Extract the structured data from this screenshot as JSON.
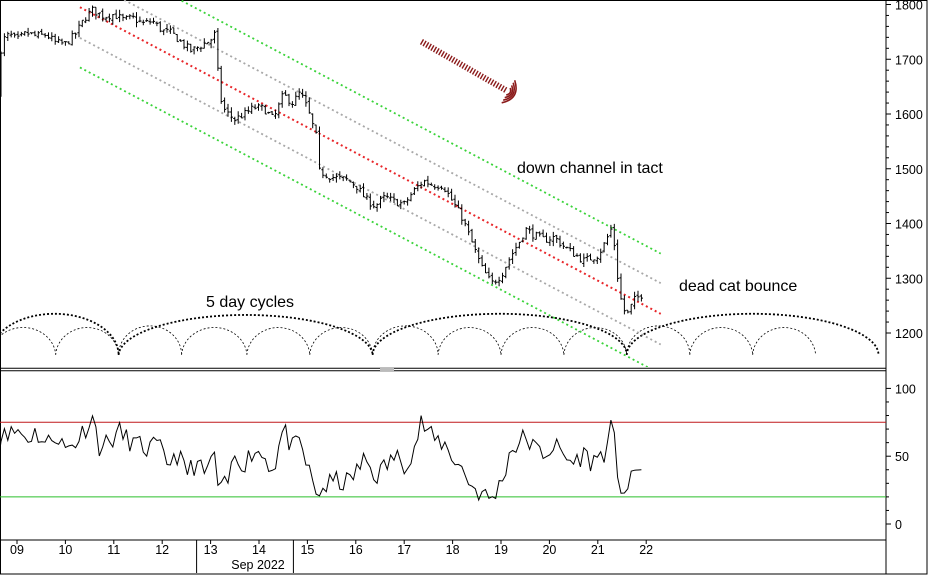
{
  "chart_data": [
    {
      "type": "ohlc",
      "panel": "price",
      "y_ticks": [
        1200,
        1300,
        1400,
        1500,
        1600,
        1700,
        1800
      ],
      "ylim": [
        1130,
        1815
      ],
      "x_ticks": [
        "09",
        "10",
        "11",
        "12",
        "13",
        "14",
        "15",
        "16",
        "17",
        "18",
        "19",
        "20",
        "21",
        "22"
      ],
      "x_sublabel": "Sep 2022",
      "close_path": [
        [
          8.6,
          1645
        ],
        [
          8.7,
          1735
        ],
        [
          8.85,
          1745
        ],
        [
          9.0,
          1735
        ],
        [
          9.2,
          1748
        ],
        [
          9.4,
          1742
        ],
        [
          9.6,
          1745
        ],
        [
          9.8,
          1730
        ],
        [
          10.0,
          1728
        ],
        [
          10.2,
          1745
        ],
        [
          10.4,
          1775
        ],
        [
          10.55,
          1790
        ],
        [
          10.8,
          1778
        ],
        [
          11.0,
          1782
        ],
        [
          11.2,
          1772
        ],
        [
          11.4,
          1775
        ],
        [
          11.6,
          1765
        ],
        [
          11.8,
          1770
        ],
        [
          12.0,
          1752
        ],
        [
          12.2,
          1748
        ],
        [
          12.4,
          1730
        ],
        [
          12.6,
          1715
        ],
        [
          12.8,
          1725
        ],
        [
          13.0,
          1735
        ],
        [
          13.1,
          1748
        ],
        [
          13.18,
          1635
        ],
        [
          13.3,
          1605
        ],
        [
          13.5,
          1590
        ],
        [
          13.7,
          1600
        ],
        [
          13.9,
          1612
        ],
        [
          14.1,
          1610
        ],
        [
          14.3,
          1590
        ],
        [
          14.5,
          1635
        ],
        [
          14.7,
          1620
        ],
        [
          14.85,
          1640
        ],
        [
          15.0,
          1610
        ],
        [
          15.18,
          1560
        ],
        [
          15.25,
          1495
        ],
        [
          15.5,
          1485
        ],
        [
          15.8,
          1480
        ],
        [
          16.0,
          1470
        ],
        [
          16.2,
          1445
        ],
        [
          16.4,
          1432
        ],
        [
          16.6,
          1448
        ],
        [
          16.8,
          1440
        ],
        [
          17.0,
          1435
        ],
        [
          17.2,
          1460
        ],
        [
          17.4,
          1478
        ],
        [
          17.6,
          1470
        ],
        [
          17.8,
          1470
        ],
        [
          18.0,
          1440
        ],
        [
          18.2,
          1410
        ],
        [
          18.4,
          1365
        ],
        [
          18.6,
          1320
        ],
        [
          18.8,
          1290
        ],
        [
          19.0,
          1305
        ],
        [
          19.2,
          1340
        ],
        [
          19.4,
          1370
        ],
        [
          19.5,
          1390
        ],
        [
          19.7,
          1378
        ],
        [
          19.9,
          1370
        ],
        [
          20.1,
          1375
        ],
        [
          20.3,
          1358
        ],
        [
          20.5,
          1345
        ],
        [
          20.7,
          1332
        ],
        [
          20.9,
          1338
        ],
        [
          21.0,
          1342
        ],
        [
          21.15,
          1365
        ],
        [
          21.3,
          1395
        ],
        [
          21.42,
          1295
        ],
        [
          21.5,
          1250
        ],
        [
          21.6,
          1232
        ],
        [
          21.75,
          1260
        ],
        [
          21.9,
          1270
        ]
      ],
      "channel": {
        "start": [
          10.3,
          1795
        ],
        "end": [
          22.3,
          1235
        ],
        "offsets": [
          -110,
          -56,
          0,
          56,
          110
        ],
        "midline_color": "#e8262a",
        "inner_color": "#a8a8a8",
        "outer_color": "#3ad33a"
      },
      "cycles": {
        "label": "5 day cycles",
        "troughs_major": [
          8.45,
          11.1,
          16.35,
          21.6,
          26.8
        ],
        "troughs_minor": [
          8.45,
          9.8,
          11.1,
          12.4,
          13.75,
          15.05,
          16.35,
          17.7,
          19.0,
          20.3,
          21.6,
          22.9,
          24.2,
          25.5
        ],
        "trough_level": 1160,
        "major_peak_level": 1235,
        "minor_peak_level": 1213
      },
      "annotations": [
        {
          "text": "down channel in tact"
        },
        {
          "text": "dead cat bounce"
        }
      ],
      "arrow_color": "#8b1a1a"
    },
    {
      "type": "line",
      "panel": "oscillator",
      "y_ticks": [
        0,
        50,
        100
      ],
      "ylim": [
        -12,
        110
      ],
      "upper_level": 75,
      "lower_level": 20,
      "upper_color": "#c0191b",
      "lower_color": "#2bbf2b",
      "points": [
        [
          8.6,
          50
        ],
        [
          8.75,
          75
        ],
        [
          8.85,
          65
        ],
        [
          9.0,
          70
        ],
        [
          9.2,
          63
        ],
        [
          9.4,
          68
        ],
        [
          9.6,
          58
        ],
        [
          9.8,
          67
        ],
        [
          10.0,
          55
        ],
        [
          10.2,
          60
        ],
        [
          10.4,
          70
        ],
        [
          10.55,
          80
        ],
        [
          10.7,
          58
        ],
        [
          10.9,
          60
        ],
        [
          11.1,
          68
        ],
        [
          11.3,
          62
        ],
        [
          11.5,
          58
        ],
        [
          11.7,
          55
        ],
        [
          11.9,
          58
        ],
        [
          12.1,
          45
        ],
        [
          12.3,
          52
        ],
        [
          12.5,
          38
        ],
        [
          12.7,
          45
        ],
        [
          12.9,
          35
        ],
        [
          13.05,
          55
        ],
        [
          13.18,
          22
        ],
        [
          13.35,
          30
        ],
        [
          13.5,
          50
        ],
        [
          13.7,
          45
        ],
        [
          13.9,
          55
        ],
        [
          14.1,
          50
        ],
        [
          14.3,
          40
        ],
        [
          14.5,
          70
        ],
        [
          14.7,
          55
        ],
        [
          14.85,
          60
        ],
        [
          15.0,
          42
        ],
        [
          15.18,
          22
        ],
        [
          15.4,
          28
        ],
        [
          15.6,
          32
        ],
        [
          15.8,
          30
        ],
        [
          16.0,
          38
        ],
        [
          16.2,
          48
        ],
        [
          16.4,
          35
        ],
        [
          16.6,
          42
        ],
        [
          16.8,
          50
        ],
        [
          17.0,
          45
        ],
        [
          17.2,
          55
        ],
        [
          17.35,
          75
        ],
        [
          17.6,
          62
        ],
        [
          17.8,
          60
        ],
        [
          18.0,
          50
        ],
        [
          18.2,
          40
        ],
        [
          18.4,
          28
        ],
        [
          18.6,
          22
        ],
        [
          18.8,
          18
        ],
        [
          19.0,
          30
        ],
        [
          19.2,
          55
        ],
        [
          19.4,
          60
        ],
        [
          19.5,
          65
        ],
        [
          19.7,
          55
        ],
        [
          19.9,
          52
        ],
        [
          20.1,
          58
        ],
        [
          20.3,
          50
        ],
        [
          20.5,
          45
        ],
        [
          20.7,
          52
        ],
        [
          20.9,
          45
        ],
        [
          21.0,
          50
        ],
        [
          21.2,
          55
        ],
        [
          21.3,
          75
        ],
        [
          21.4,
          40
        ],
        [
          21.5,
          25
        ],
        [
          21.6,
          25
        ],
        [
          21.75,
          35
        ],
        [
          21.9,
          45
        ]
      ]
    }
  ]
}
